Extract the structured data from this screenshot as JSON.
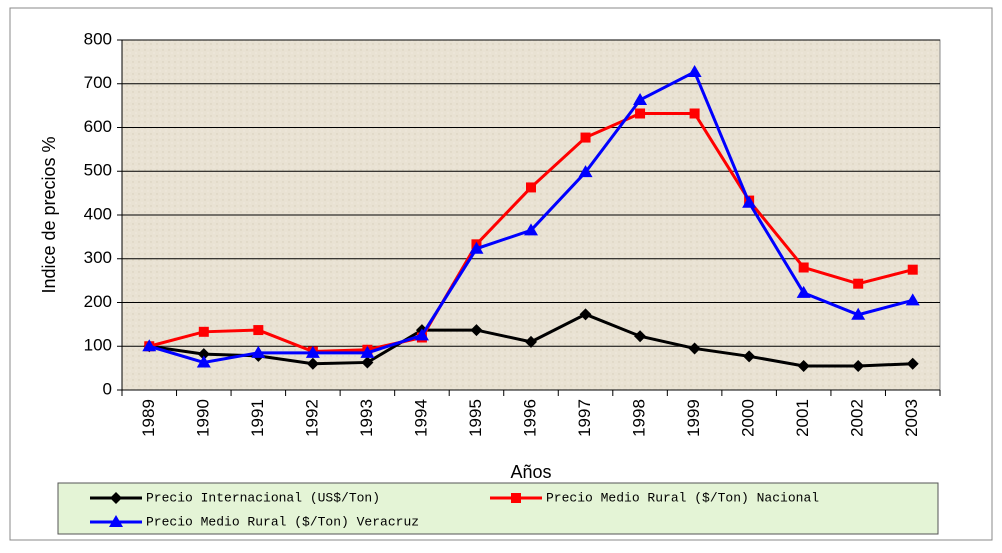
{
  "chart_data": {
    "type": "line",
    "y_label": "Indice de precios %",
    "x_label": "Años",
    "categories": [
      "1989",
      "1990",
      "1991",
      "1992",
      "1993",
      "1994",
      "1995",
      "1996",
      "1997",
      "1998",
      "1999",
      "2000",
      "2001",
      "2002",
      "2003"
    ],
    "series": [
      {
        "name": "Precio Internacional (US$/Ton)",
        "color": "#000000",
        "marker": "diamond",
        "values": [
          100,
          82,
          78,
          60,
          63,
          137,
          137,
          110,
          173,
          123,
          95,
          77,
          55,
          55,
          60
        ]
      },
      {
        "name": "Precio Medio Rural ($/Ton) Nacional",
        "color": "#ff0000",
        "marker": "square",
        "values": [
          100,
          133,
          137,
          88,
          92,
          120,
          333,
          463,
          577,
          632,
          632,
          433,
          280,
          243,
          275
        ]
      },
      {
        "name": "Precio Medio Rural ($/Ton) Veracruz",
        "color": "#0000ff",
        "marker": "triangle",
        "values": [
          100,
          63,
          85,
          85,
          85,
          125,
          323,
          365,
          498,
          663,
          727,
          428,
          222,
          172,
          205
        ]
      }
    ],
    "ylim": [
      0,
      800
    ],
    "yticks": [
      0,
      100,
      200,
      300,
      400,
      500,
      600,
      700,
      800
    ],
    "grid": true,
    "legend": "bottom"
  }
}
